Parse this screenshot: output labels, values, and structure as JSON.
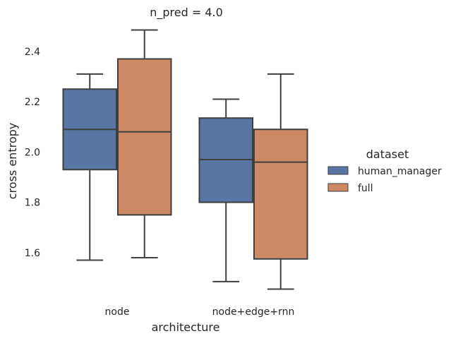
{
  "chart_data": {
    "type": "box",
    "title": "n_pred = 4.0",
    "xlabel": "architecture",
    "ylabel": "cross entropy",
    "ylim": [
      1.42,
      2.52
    ],
    "yticks": [
      1.6,
      1.8,
      2.0,
      2.2,
      2.4
    ],
    "grid": false,
    "legend": {
      "title": "dataset",
      "position": "right"
    },
    "categories": [
      "node",
      "node+edge+rnn"
    ],
    "series": [
      {
        "name": "human_manager",
        "color": "#5875a4",
        "boxes": [
          {
            "whisker_low": 1.57,
            "q1": 1.93,
            "median": 2.09,
            "q3": 2.25,
            "whisker_high": 2.31
          },
          {
            "whisker_low": 1.485,
            "q1": 1.8,
            "median": 1.97,
            "q3": 2.135,
            "whisker_high": 2.21
          }
        ]
      },
      {
        "name": "full",
        "color": "#cc8963",
        "boxes": [
          {
            "whisker_low": 1.58,
            "q1": 1.75,
            "median": 2.08,
            "q3": 2.37,
            "whisker_high": 2.485
          },
          {
            "whisker_low": 1.455,
            "q1": 1.575,
            "median": 1.96,
            "q3": 2.09,
            "whisker_high": 2.31
          }
        ]
      }
    ]
  }
}
